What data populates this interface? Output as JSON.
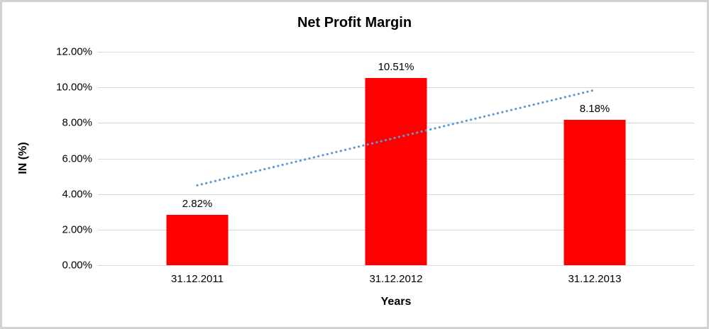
{
  "chart_data": {
    "type": "bar",
    "title": "Net Profit Margin",
    "xlabel": "Years",
    "ylabel": "IN (%)",
    "ylim": [
      0,
      12
    ],
    "grid": true,
    "legend": false,
    "yticks": [
      {
        "value": 0,
        "label": "0.00%"
      },
      {
        "value": 2,
        "label": "2.00%"
      },
      {
        "value": 4,
        "label": "4.00%"
      },
      {
        "value": 6,
        "label": "6.00%"
      },
      {
        "value": 8,
        "label": "8.00%"
      },
      {
        "value": 10,
        "label": "10.00%"
      },
      {
        "value": 12,
        "label": "12.00%"
      }
    ],
    "categories": [
      "31.12.2011",
      "31.12.2012",
      "31.12.2013"
    ],
    "values": [
      2.82,
      10.51,
      8.18
    ],
    "data_labels": [
      "2.82%",
      "10.51%",
      "8.18%"
    ],
    "bar_color": "#ff0000",
    "gridline_color": "#d9d9d9",
    "trendline": {
      "type": "linear",
      "style": "dotted",
      "color": "#5b9bd5",
      "start_value": 4.49,
      "end_value": 9.85
    }
  }
}
